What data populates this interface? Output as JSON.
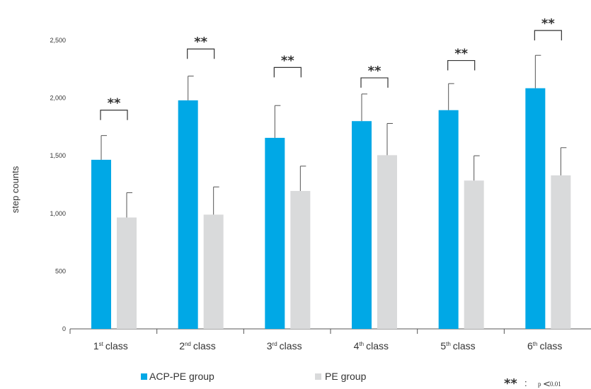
{
  "chart_data": {
    "type": "bar",
    "title": "",
    "xlabel": "",
    "ylabel": "step counts",
    "ylim": [
      0,
      2500
    ],
    "yticks": [
      {
        "value": 0,
        "label": "0"
      },
      {
        "value": 500,
        "label": "500"
      },
      {
        "value": 1000,
        "label": "1,000"
      },
      {
        "value": 1500,
        "label": "1,500"
      },
      {
        "value": 2000,
        "label": "2,000"
      },
      {
        "value": 2500,
        "label": "2,500"
      }
    ],
    "categories": [
      {
        "num": "1",
        "sup": "st",
        "word": "class"
      },
      {
        "num": "2",
        "sup": "nd",
        "word": "class"
      },
      {
        "num": "3",
        "sup": "rd",
        "word": "class"
      },
      {
        "num": "4",
        "sup": "th",
        "word": "class"
      },
      {
        "num": "5",
        "sup": "th",
        "word": "class"
      },
      {
        "num": "6",
        "sup": "th",
        "word": "class"
      }
    ],
    "series": [
      {
        "name": "ACP-PE group",
        "color": "#00a8e6",
        "values": [
          1465,
          1980,
          1655,
          1800,
          1895,
          2085
        ],
        "errors": [
          210,
          210,
          280,
          235,
          230,
          285
        ]
      },
      {
        "name": "PE group",
        "color": "#d9dadb",
        "values": [
          965,
          990,
          1195,
          1505,
          1285,
          1330
        ],
        "errors": [
          215,
          240,
          215,
          275,
          215,
          240
        ]
      }
    ],
    "significance": {
      "mark": "**",
      "bracket_y": [
        1895,
        2425,
        2265,
        2175,
        2325,
        2585
      ]
    },
    "grid": false,
    "legend_position": "bottom"
  },
  "note": {
    "mark": "**",
    "colon": ":",
    "p": "p",
    "lt": "<",
    "value": "0.01"
  }
}
